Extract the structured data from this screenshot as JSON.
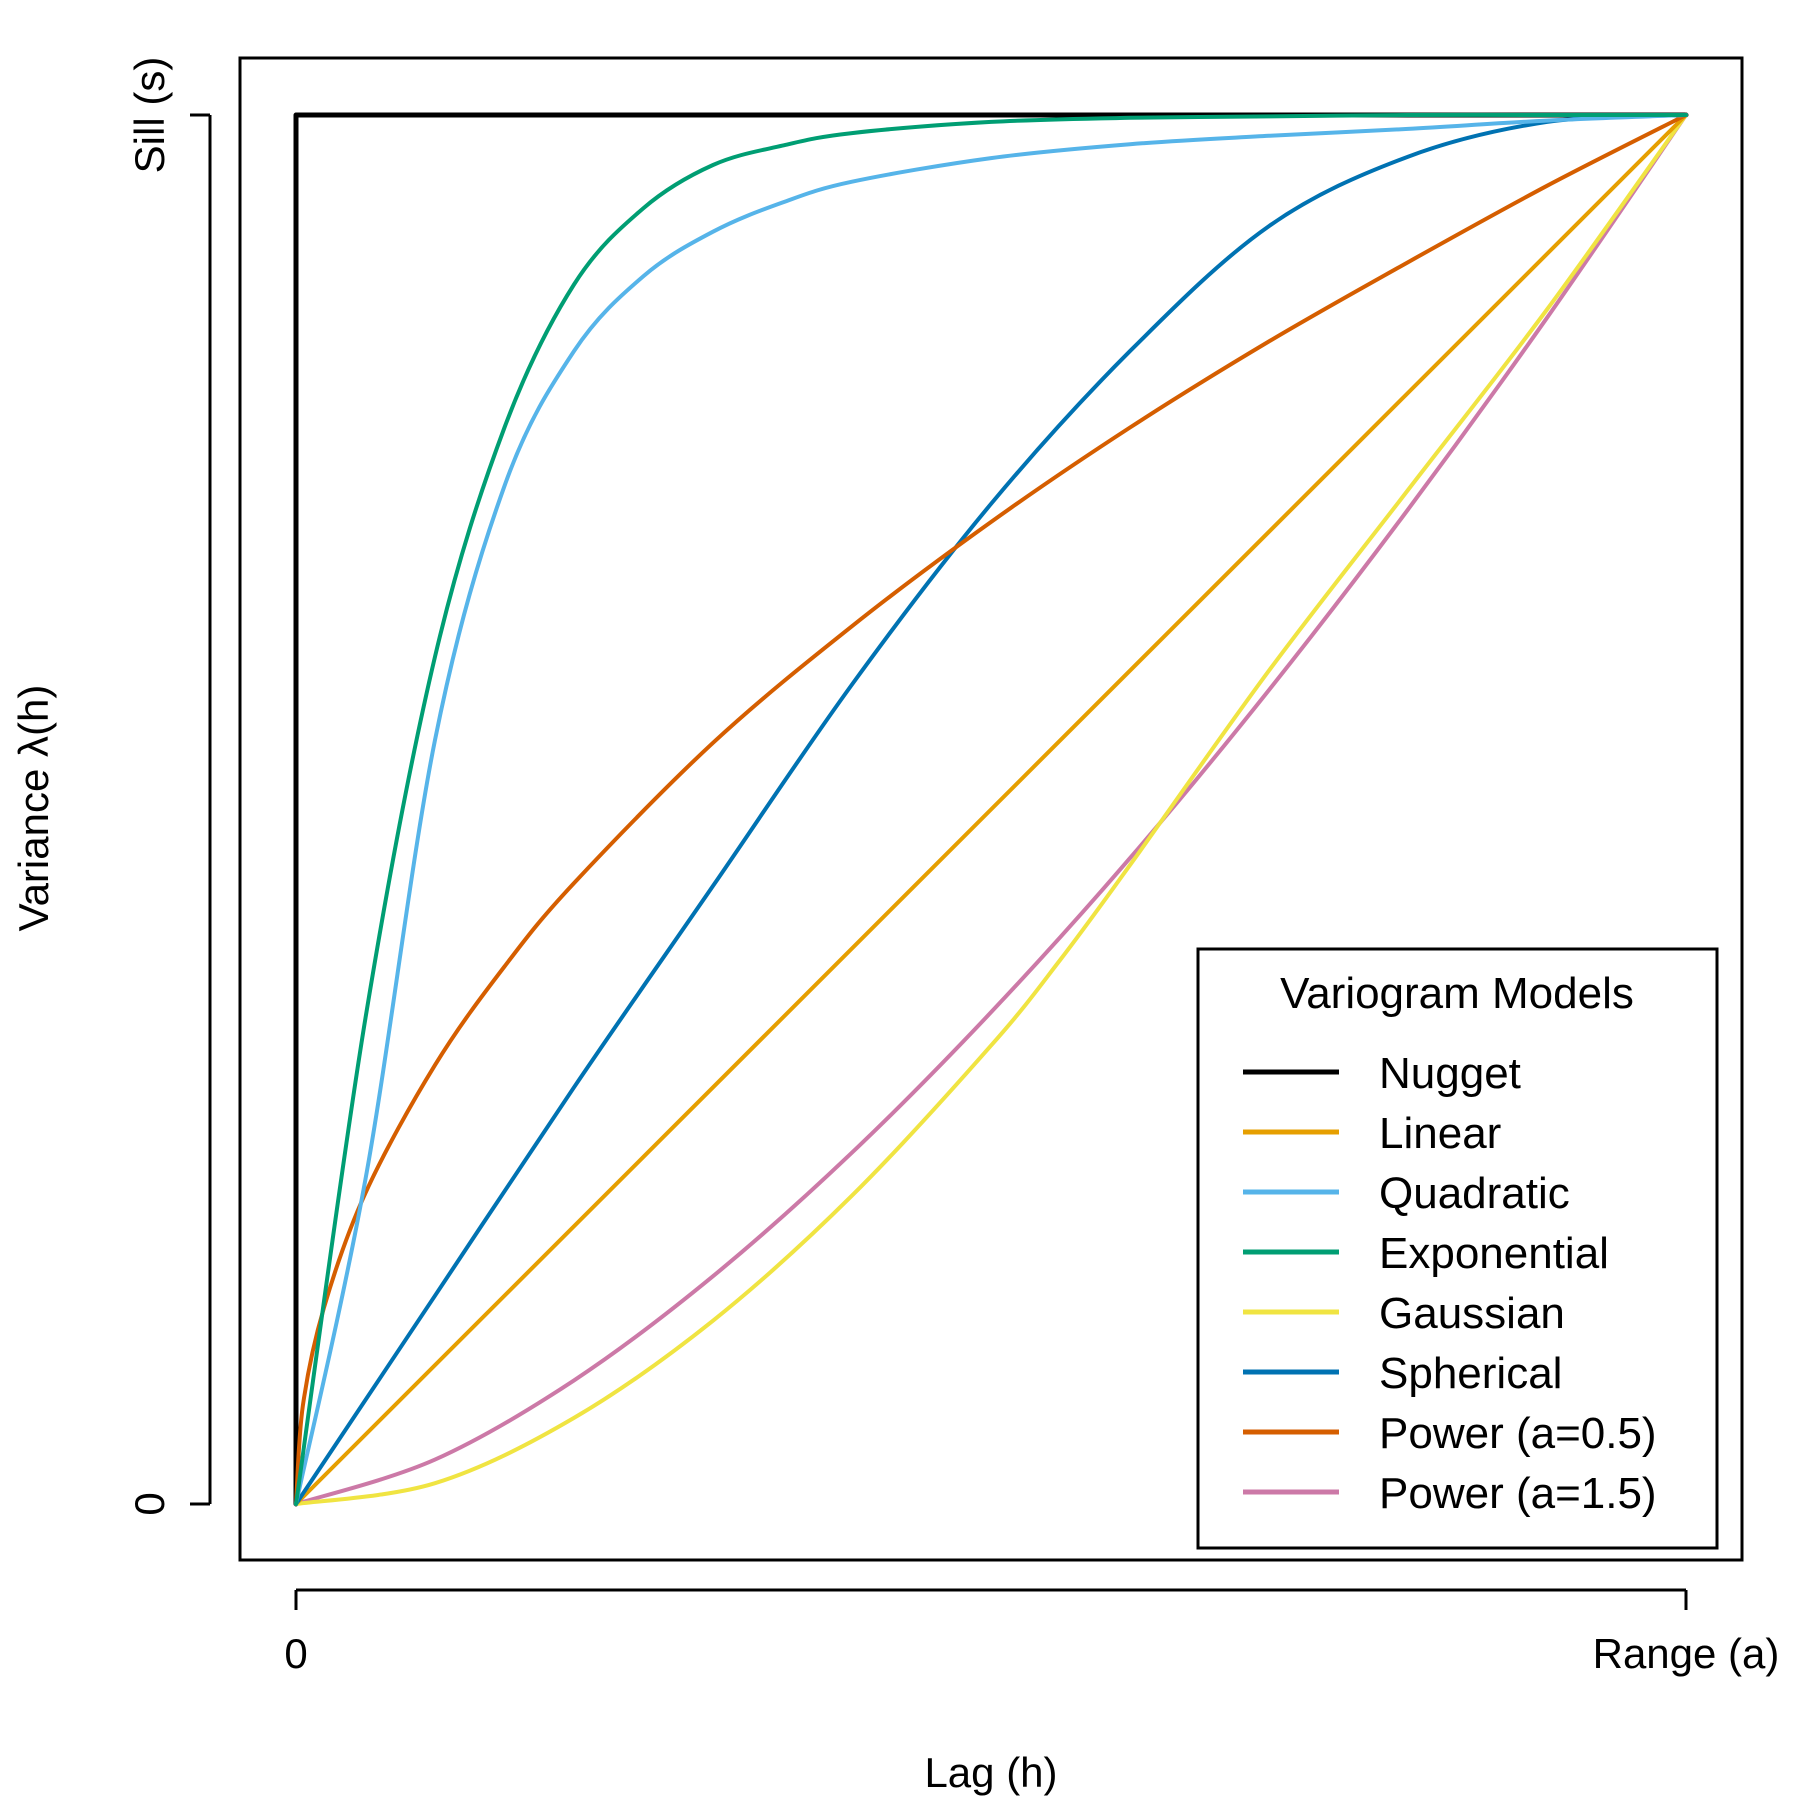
{
  "chart_data": {
    "type": "line",
    "title": "",
    "xlabel": "Lag (h)",
    "ylabel": "Variance λ(h)",
    "xlim": [
      0,
      1
    ],
    "ylim": [
      0,
      1
    ],
    "x_ticks": [
      {
        "value": 0,
        "label": "0"
      },
      {
        "value": 1,
        "label": "Range (a)"
      }
    ],
    "y_ticks": [
      {
        "value": 0,
        "label": "0"
      },
      {
        "value": 1,
        "label": "Sill (s)"
      }
    ],
    "grid": false,
    "legend": {
      "title": "Variogram Models",
      "position": "bottom-right"
    },
    "series": [
      {
        "name": "Nugget",
        "color": "#000000",
        "x": [
          0,
          0,
          0.01,
          0.2,
          0.4,
          0.6,
          0.8,
          1.0
        ],
        "values": [
          0,
          1,
          1,
          1,
          1,
          1,
          1,
          1
        ]
      },
      {
        "name": "Linear",
        "color": "#E69F00",
        "x": [
          0,
          0.25,
          0.5,
          0.75,
          1.0
        ],
        "values": [
          0,
          0.25,
          0.5,
          0.75,
          1.0
        ]
      },
      {
        "name": "Quadratic",
        "color": "#56B4E9",
        "x": [
          0,
          0.05,
          0.1,
          0.15,
          0.2,
          0.25,
          0.3,
          0.35,
          0.4,
          0.5,
          0.6,
          0.7,
          0.8,
          0.9,
          1.0
        ],
        "values": [
          0,
          0.234,
          0.55,
          0.733,
          0.83,
          0.884,
          0.916,
          0.937,
          0.952,
          0.969,
          0.979,
          0.985,
          0.99,
          0.996,
          1.0
        ]
      },
      {
        "name": "Exponential",
        "color": "#009E73",
        "x": [
          0,
          0.05,
          0.1,
          0.15,
          0.2,
          0.25,
          0.3,
          0.35,
          0.4,
          0.5,
          0.6,
          0.7,
          0.8,
          0.9,
          1.0
        ],
        "values": [
          0,
          0.35,
          0.61,
          0.775,
          0.878,
          0.933,
          0.964,
          0.978,
          0.987,
          0.995,
          0.998,
          0.999,
          1.0,
          1.0,
          1.0
        ]
      },
      {
        "name": "Gaussian",
        "color": "#F0E442",
        "x": [
          0,
          0.1,
          0.2,
          0.3,
          0.4,
          0.5,
          0.55,
          0.6,
          0.7,
          0.8,
          0.9,
          1.0
        ],
        "values": [
          0,
          0.015,
          0.062,
          0.132,
          0.222,
          0.33,
          0.392,
          0.46,
          0.6,
          0.73,
          0.86,
          1.0
        ]
      },
      {
        "name": "Spherical",
        "color": "#0072B2",
        "x": [
          0,
          0.1,
          0.2,
          0.3,
          0.4,
          0.5,
          0.6,
          0.7,
          0.8,
          0.9,
          1.0
        ],
        "values": [
          0,
          0.15,
          0.3,
          0.445,
          0.59,
          0.72,
          0.83,
          0.92,
          0.97,
          0.995,
          1.0
        ]
      },
      {
        "name": "Power (a=0.5)",
        "color": "#D55E00",
        "x": [
          0,
          0.005,
          0.02,
          0.05,
          0.1,
          0.15,
          0.2,
          0.3,
          0.4,
          0.5,
          0.6,
          0.7,
          0.8,
          0.9,
          1.0
        ],
        "values": [
          0,
          0.071,
          0.141,
          0.224,
          0.316,
          0.387,
          0.447,
          0.548,
          0.632,
          0.707,
          0.775,
          0.837,
          0.894,
          0.949,
          1.0
        ]
      },
      {
        "name": "Power (a=1.5)",
        "color": "#CC79A7",
        "x": [
          0,
          0.1,
          0.2,
          0.3,
          0.4,
          0.5,
          0.6,
          0.7,
          0.8,
          0.9,
          1.0
        ],
        "values": [
          0,
          0.032,
          0.089,
          0.164,
          0.253,
          0.354,
          0.465,
          0.586,
          0.716,
          0.854,
          1.0
        ]
      }
    ]
  }
}
